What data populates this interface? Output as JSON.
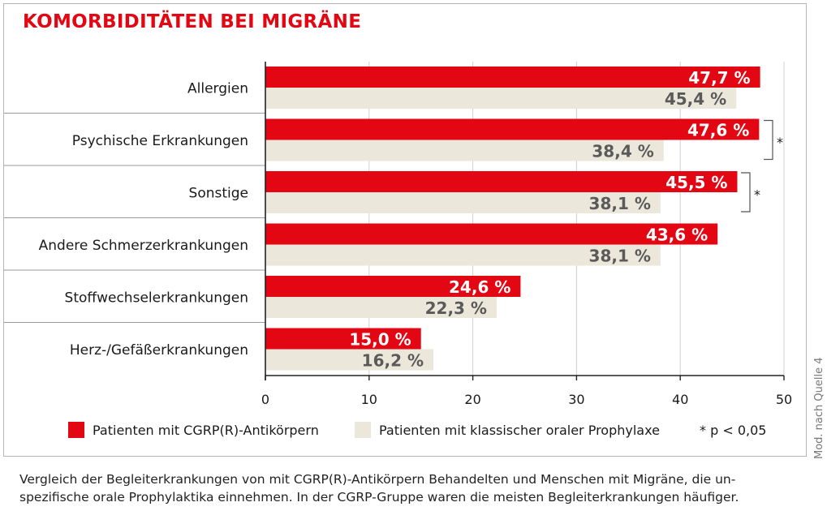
{
  "chart_data": {
    "type": "bar",
    "orientation": "horizontal",
    "title": "KOMORBIDITÄTEN BEI MIGRÄNE",
    "categories": [
      "Allergien",
      "Psychische Erkrankungen",
      "Sonstige",
      "Andere Schmerzerkrankungen",
      "Stoffwechselerkrankungen",
      "Herz-/Gefäßerkrankungen"
    ],
    "series": [
      {
        "name": "Patienten mit CGRP(R)-Antikörpern",
        "color": "#e30613",
        "values": [
          47.7,
          47.6,
          45.5,
          43.6,
          24.6,
          15.0
        ],
        "labels": [
          "47,7 %",
          "47,6 %",
          "45,5 %",
          "43,6 %",
          "24,6 %",
          "15,0 %"
        ]
      },
      {
        "name": "Patienten mit klassischer oraler Prophylaxe",
        "color": "#ebe7da",
        "values": [
          45.4,
          38.4,
          38.1,
          38.1,
          22.3,
          16.2
        ],
        "labels": [
          "45,4 %",
          "38,4 %",
          "38,1 %",
          "38,1 %",
          "22,3 %",
          "16,2 %"
        ]
      }
    ],
    "xlim": [
      0,
      50
    ],
    "xticks": [
      0,
      10,
      20,
      30,
      40,
      50
    ],
    "xtick_labels": [
      "0",
      "10",
      "20",
      "30",
      "40",
      "50"
    ],
    "grid": true,
    "significance_marker": "*",
    "significant_categories": [
      "Psychische Erkrankungen",
      "Sonstige"
    ],
    "significance_legend": "* p < 0,05",
    "legend_position": "bottom"
  },
  "caption": "Vergleich der Begleiterkrankungen von mit CGRP(R)-Antikörpern Behandelten und Menschen mit Migräne, die un­spezifische orale Prophylaktika einnehmen. In der CGRP-Gruppe waren die meisten Begleiterkrankungen häufiger.",
  "source": "Mod. nach Quelle 4",
  "colors": {
    "accent": "#e30613",
    "secondary_bar": "#ebe7da",
    "grid": "#d0d0d0",
    "text_on_light": "#5a5a5a"
  }
}
